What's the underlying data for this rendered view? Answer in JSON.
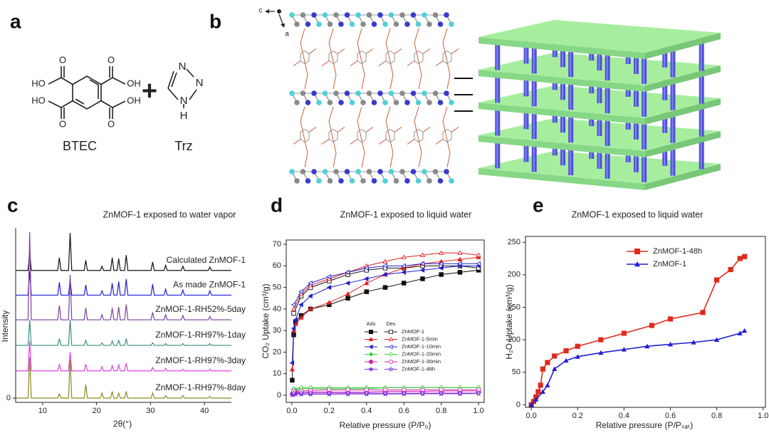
{
  "labels": [
    "a",
    "b",
    "c",
    "d",
    "e"
  ],
  "panel_a": {
    "acid_groups": [
      "HO",
      "OH",
      "HO",
      "OH"
    ],
    "oxygens": [
      "O",
      "O",
      "O",
      "O"
    ],
    "plus": "+",
    "triazole_atoms": [
      "N",
      "N",
      "N",
      "H"
    ],
    "names": [
      "BTEC",
      "Trz"
    ]
  },
  "panel_b": {
    "axes": [
      "c",
      "a"
    ]
  },
  "chart_data": [
    {
      "type": "line",
      "title": "ZnMOF-1 exposed to water vapor",
      "xlabel": "2θ(°)",
      "ylabel": "Intensity",
      "xlim": [
        5,
        45
      ],
      "xticks": [
        10,
        20,
        30,
        40
      ],
      "ylim": [
        -0.5,
        20
      ],
      "yticks": [
        0
      ],
      "legend": "inline",
      "x": [
        5,
        7.3,
        7.6,
        7.9,
        12.8,
        13.1,
        13.4,
        14.8,
        15.1,
        15.4,
        17.7,
        18,
        18.3,
        20.7,
        21,
        21.3,
        22.6,
        22.9,
        23.2,
        23.8,
        24.1,
        24.4,
        25.2,
        25.5,
        25.8,
        30.1,
        30.4,
        30.7,
        32.5,
        32.8,
        33.1,
        35.7,
        36,
        36.3,
        40.7,
        41,
        41.3,
        45
      ],
      "series": [
        {
          "name": "Calculated ZnMOF-1",
          "color": "#111111",
          "values": [
            15,
            15,
            17.2,
            15,
            15,
            16.5,
            15,
            15,
            19.4,
            15,
            15,
            16.2,
            15,
            15,
            15.5,
            15,
            15,
            16.5,
            15,
            15,
            16.4,
            15,
            15,
            16.8,
            15,
            15,
            16,
            15,
            15,
            15.6,
            15,
            15,
            15.5,
            15,
            15,
            15.4,
            15,
            15
          ]
        },
        {
          "name": "As made ZnMOF-1",
          "color": "#1f1fd8",
          "values": [
            12.1,
            12.1,
            14.9,
            12.1,
            12.1,
            13.6,
            12.1,
            12.1,
            13.9,
            12.1,
            12.1,
            13.3,
            12.1,
            12.1,
            12.6,
            12.1,
            12.1,
            13.5,
            12.1,
            12.1,
            13.7,
            12.1,
            12.1,
            14,
            12.1,
            12.1,
            13.4,
            12.1,
            12.1,
            12.8,
            12.1,
            12.1,
            12.7,
            12.1,
            12.1,
            12.6,
            12.1,
            12.1
          ]
        },
        {
          "name": "ZnMOF-1-RH52%-5day",
          "color": "#7a3fa0",
          "values": [
            9.2,
            9.2,
            19.5,
            9.2,
            9.2,
            10.9,
            9.2,
            9.2,
            14.5,
            9.2,
            9.2,
            10.6,
            9.2,
            9.2,
            9.8,
            9.2,
            9.2,
            10.6,
            9.2,
            9.2,
            10.7,
            9.2,
            9.2,
            11,
            9.2,
            9.2,
            10.1,
            9.2,
            9.2,
            9.8,
            9.2,
            9.2,
            9.7,
            9.2,
            9.2,
            9.6,
            9.2,
            9.2
          ]
        },
        {
          "name": "ZnMOF-1-RH97%-1day",
          "color": "#3a8f80",
          "values": [
            6.2,
            6.2,
            9.2,
            6.2,
            6.2,
            7,
            6.2,
            6.2,
            9.2,
            6.2,
            6.2,
            6.8,
            6.2,
            6.2,
            6.5,
            6.2,
            6.2,
            6.7,
            6.2,
            6.2,
            6.8,
            6.2,
            6.2,
            7,
            6.2,
            6.2,
            6.5,
            6.2,
            6.2,
            6.4,
            6.2,
            6.2,
            6.4,
            6.2,
            6.2,
            6.4,
            6.2,
            6.2
          ]
        },
        {
          "name": "ZnMOF-1-RH97%-3day",
          "color": "#e040e0",
          "values": [
            3.2,
            3.2,
            6.7,
            3.2,
            3.2,
            4,
            3.2,
            3.2,
            5.4,
            3.2,
            3.2,
            4,
            3.2,
            3.2,
            3.7,
            3.2,
            3.2,
            3.8,
            3.2,
            3.2,
            3.9,
            3.2,
            3.2,
            4.1,
            3.2,
            3.2,
            3.6,
            3.2,
            3.2,
            3.5,
            3.2,
            3.2,
            3.4,
            3.2,
            3.2,
            3.4,
            3.2,
            3.2
          ]
        },
        {
          "name": "ZnMOF-1-RH97%-8day",
          "color": "#8a8a20",
          "values": [
            0,
            0,
            4.8,
            0,
            0,
            0.5,
            0,
            0,
            4.5,
            0,
            0,
            1.6,
            0,
            0,
            0.6,
            0,
            0,
            0.8,
            0,
            0,
            0.6,
            0,
            0,
            0.8,
            0,
            0,
            0.6,
            0,
            0,
            0.3,
            0,
            0,
            0.3,
            0,
            0,
            0.2,
            0,
            0
          ]
        }
      ]
    },
    {
      "type": "isotherm",
      "title": "ZnMOF-1 exposed to liquid water",
      "xlabel": "Relative pressure (P/P₀)",
      "ylabel": "CO₂ Uptake (cm³/g)",
      "xlim": [
        -0.03,
        1.03
      ],
      "xticks": [
        {
          "value": 0,
          "label": "0.0"
        },
        0.2,
        0.4,
        0.6,
        0.8,
        {
          "value": 1,
          "label": "1.0"
        }
      ],
      "ylim": [
        -3.3,
        72
      ],
      "yticks": [
        0,
        10,
        20,
        30,
        40,
        50,
        60,
        70
      ],
      "legend": "right",
      "legend_headers": [
        "Ads",
        "Des"
      ],
      "x_ads": [
        0.002,
        0.01,
        0.02,
        0.05,
        0.1,
        0.2,
        0.3,
        0.4,
        0.5,
        0.6,
        0.7,
        0.8,
        0.9,
        1.0
      ],
      "x_des": [
        1.0,
        0.9,
        0.8,
        0.7,
        0.6,
        0.5,
        0.4,
        0.3,
        0.2,
        0.1,
        0.05,
        0.01
      ],
      "series": [
        {
          "name": "ZnMOF-1",
          "color": "#111111",
          "marker": "square",
          "ads": [
            7,
            28,
            34,
            37,
            40,
            42,
            45,
            48,
            50,
            52,
            54,
            56,
            57,
            58
          ],
          "des": [
            59,
            60,
            60,
            60,
            59,
            59,
            58,
            56,
            53,
            50,
            46,
            38
          ]
        },
        {
          "name": "ZnMOF-1-5min",
          "color": "#e02020",
          "marker": "triangle",
          "ads": [
            12,
            30,
            33,
            36,
            40,
            43,
            47,
            52,
            56,
            59,
            61,
            62,
            63,
            64
          ],
          "des": [
            65,
            66,
            66,
            65,
            64,
            62,
            60,
            57,
            54,
            51,
            47,
            40
          ]
        },
        {
          "name": "ZnMOF-1-10min",
          "color": "#2020d0",
          "marker": "triangle-left",
          "ads": [
            15,
            31,
            35,
            42,
            46,
            50,
            52,
            54,
            56,
            57,
            58,
            59,
            60,
            60
          ],
          "des": [
            61,
            61,
            61,
            61,
            60,
            60,
            59,
            57,
            55,
            52,
            48,
            42
          ]
        },
        {
          "name": "ZnMOF-1-20min",
          "color": "#30d030",
          "marker": "diamond",
          "ads": [
            1,
            2,
            2.5,
            3,
            3,
            3,
            3,
            3,
            3.5,
            3.5,
            3.5,
            3.5,
            3.5,
            3.5
          ],
          "des": [
            3.5,
            3.5,
            3.5,
            3.5,
            3.5,
            3.5,
            3.5,
            3.5,
            3.5,
            3.5,
            3.5,
            3
          ]
        },
        {
          "name": "ZnMOF-1-30min",
          "color": "#d020b0",
          "marker": "circle",
          "ads": [
            0.5,
            1,
            1.2,
            1.5,
            1.5,
            1.5,
            1.5,
            1.5,
            1.8,
            1.8,
            1.8,
            2,
            2,
            2
          ],
          "des": [
            2.5,
            2.5,
            2.5,
            2.5,
            2.5,
            2.5,
            2.5,
            2.5,
            2.5,
            2.2,
            2,
            2
          ]
        },
        {
          "name": "ZnMOF-1-48h",
          "color": "#8030e0",
          "marker": "star",
          "ads": [
            0.2,
            0.4,
            0.5,
            0.5,
            0.5,
            0.5,
            0.6,
            0.6,
            0.6,
            0.6,
            0.7,
            0.7,
            0.7,
            0.8
          ],
          "des": [
            1,
            1,
            1,
            1,
            1,
            1,
            1,
            1,
            1,
            1,
            1,
            1
          ]
        }
      ]
    },
    {
      "type": "line",
      "title": "ZnMOF-1 exposed to liquid water",
      "xlabel": "Relative pressure (P/Pₛₐₜ)",
      "ylabel": "H₂O Uptake (cm³/g)",
      "xlim": [
        -0.025,
        1.01
      ],
      "xticks": [
        {
          "value": 0,
          "label": "0.0"
        },
        0.2,
        0.4,
        0.6,
        0.8,
        {
          "value": 1,
          "label": "1.0"
        }
      ],
      "ylim": [
        -4,
        259
      ],
      "yticks": [
        0,
        50,
        100,
        150,
        200,
        250
      ],
      "legend": "upper left",
      "series": [
        {
          "name": "ZnMOF-1-48h",
          "color": "#e02a1a",
          "marker": "square",
          "x": [
            0,
            0.01,
            0.02,
            0.03,
            0.04,
            0.05,
            0.07,
            0.1,
            0.15,
            0.2,
            0.3,
            0.4,
            0.52,
            0.6,
            0.74,
            0.8,
            0.86,
            0.9,
            0.92
          ],
          "values": [
            0,
            5,
            12,
            20,
            30,
            55,
            65,
            75,
            83,
            90,
            100,
            110,
            122,
            132,
            142,
            192,
            208,
            225,
            228
          ]
        },
        {
          "name": "ZnMOF-1",
          "color": "#2020d0",
          "marker": "triangle",
          "x": [
            0,
            0.02,
            0.05,
            0.07,
            0.1,
            0.15,
            0.2,
            0.3,
            0.4,
            0.5,
            0.6,
            0.7,
            0.8,
            0.9,
            0.92
          ],
          "values": [
            0,
            8,
            20,
            30,
            55,
            68,
            74,
            80,
            85,
            90,
            93,
            96,
            100,
            110,
            114
          ]
        }
      ]
    }
  ]
}
